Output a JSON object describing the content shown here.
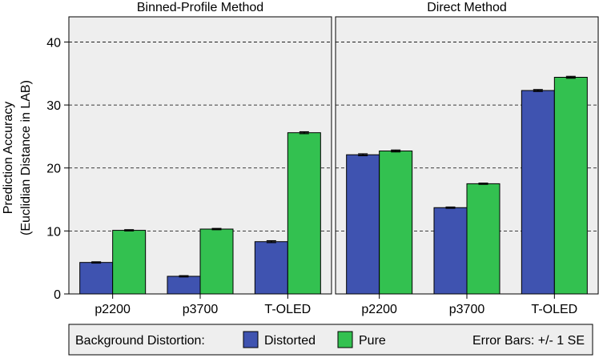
{
  "chart_data": {
    "type": "bar",
    "panels": [
      {
        "title": "Binned-Profile Method",
        "categories": [
          "p2200",
          "p3700",
          "T-OLED"
        ],
        "series": [
          {
            "name": "Distorted",
            "values": [
              5.0,
              2.8,
              8.3
            ],
            "errors": [
              0.1,
              0.1,
              0.15
            ]
          },
          {
            "name": "Pure",
            "values": [
              10.1,
              10.3,
              25.6
            ],
            "errors": [
              0.1,
              0.1,
              0.15
            ]
          }
        ]
      },
      {
        "title": "Direct Method",
        "categories": [
          "p2200",
          "p3700",
          "T-OLED"
        ],
        "series": [
          {
            "name": "Distorted",
            "values": [
              22.1,
              13.7,
              32.3
            ],
            "errors": [
              0.15,
              0.1,
              0.15
            ]
          },
          {
            "name": "Pure",
            "values": [
              22.7,
              17.5,
              34.4
            ],
            "errors": [
              0.15,
              0.1,
              0.15
            ]
          }
        ]
      }
    ],
    "ylabel_line1": "Prediction Accuracy",
    "ylabel_line2": "(Euclidian Distance in LAB)",
    "ylim": [
      0,
      44
    ],
    "yticks": [
      0,
      10,
      20,
      30,
      40
    ],
    "grid": "horizontal dashed",
    "legend": {
      "placement": "bottom",
      "title": "Background Distortion:",
      "items": [
        "Distorted",
        "Pure"
      ],
      "note": "Error Bars: +/- 1 SE"
    },
    "colors": {
      "Distorted": "#3f53b0",
      "Pure": "#33c150",
      "panel_bg": "#eeeeee"
    }
  }
}
